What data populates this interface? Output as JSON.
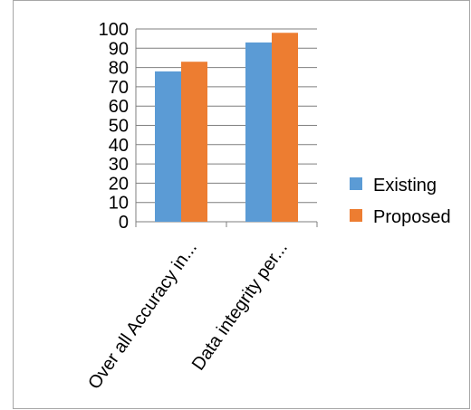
{
  "chart_data": {
    "type": "bar",
    "categories": [
      "Over all Accuracy in...",
      "Data integrity per..."
    ],
    "series": [
      {
        "name": "Existing",
        "values": [
          78,
          93
        ],
        "color": "#5b9bd5"
      },
      {
        "name": "Proposed",
        "values": [
          83,
          98
        ],
        "color": "#ed7d31"
      }
    ],
    "ylim": [
      0,
      100
    ],
    "yticks": [
      0,
      10,
      20,
      30,
      40,
      50,
      60,
      70,
      80,
      90,
      100
    ],
    "grid": true,
    "legend_position": "right",
    "gridline_color": "#7f7f7f"
  }
}
